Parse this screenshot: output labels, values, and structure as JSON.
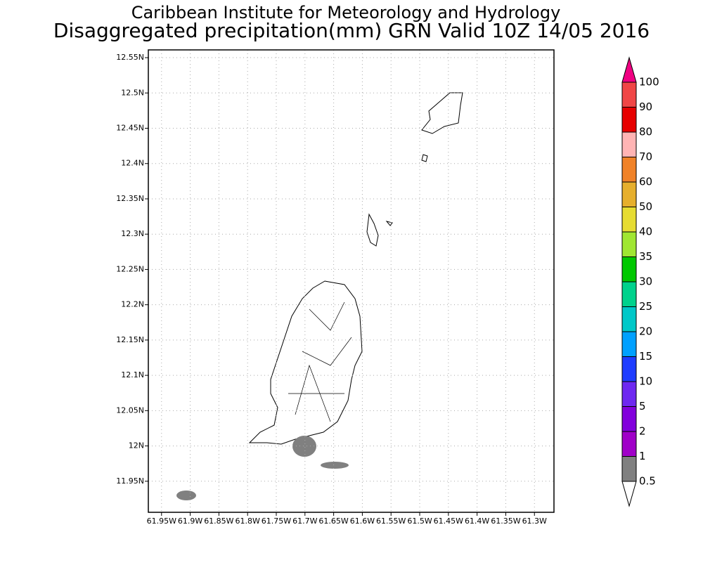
{
  "header": {
    "title": "Caribbean Institute for Meteorology and Hydrology",
    "subtitle": "Disaggregated precipitation(mm) GRN Valid 10Z 14/05 2016"
  },
  "map": {
    "lon_range": [
      -61.973,
      -61.266
    ],
    "lat_range": [
      11.906,
      12.561
    ],
    "grid": true,
    "lat_ticks": [
      {
        "value": 12.55,
        "label": "12.55N"
      },
      {
        "value": 12.5,
        "label": "12.5N"
      },
      {
        "value": 12.45,
        "label": "12.45N"
      },
      {
        "value": 12.4,
        "label": "12.4N"
      },
      {
        "value": 12.35,
        "label": "12.35N"
      },
      {
        "value": 12.3,
        "label": "12.3N"
      },
      {
        "value": 12.25,
        "label": "12.25N"
      },
      {
        "value": 12.2,
        "label": "12.2N"
      },
      {
        "value": 12.15,
        "label": "12.15N"
      },
      {
        "value": 12.1,
        "label": "12.1N"
      },
      {
        "value": 12.05,
        "label": "12.05N"
      },
      {
        "value": 12,
        "label": "12N"
      },
      {
        "value": 11.95,
        "label": "11.95N"
      }
    ],
    "lon_ticks": [
      {
        "value": -61.95,
        "label": "61.95W"
      },
      {
        "value": -61.9,
        "label": "61.9W"
      },
      {
        "value": -61.85,
        "label": "61.85W"
      },
      {
        "value": -61.8,
        "label": "61.8W"
      },
      {
        "value": -61.75,
        "label": "61.75W"
      },
      {
        "value": -61.7,
        "label": "61.7W"
      },
      {
        "value": -61.65,
        "label": "61.65W"
      },
      {
        "value": -61.6,
        "label": "61.6W"
      },
      {
        "value": -61.55,
        "label": "61.55W"
      },
      {
        "value": -61.5,
        "label": "61.5W"
      },
      {
        "value": -61.45,
        "label": "61.45W"
      },
      {
        "value": -61.4,
        "label": "61.4W"
      },
      {
        "value": -61.35,
        "label": "61.35W"
      },
      {
        "value": -61.3,
        "label": "61.3W"
      }
    ]
  },
  "colorbar": {
    "levels": [
      0.5,
      1,
      2,
      5,
      10,
      15,
      20,
      25,
      30,
      35,
      40,
      50,
      60,
      70,
      80,
      90,
      100
    ],
    "colors": [
      "#ffffff",
      "#808080",
      "#a000c8",
      "#8200dc",
      "#6e28f0",
      "#1e3cff",
      "#00a0ff",
      "#00c8c8",
      "#00d28c",
      "#00c800",
      "#a0e632",
      "#e6dc32",
      "#e6af2d",
      "#f08228",
      "#ffb4b4",
      "#e60000",
      "#f04646",
      "#f00082"
    ]
  }
}
